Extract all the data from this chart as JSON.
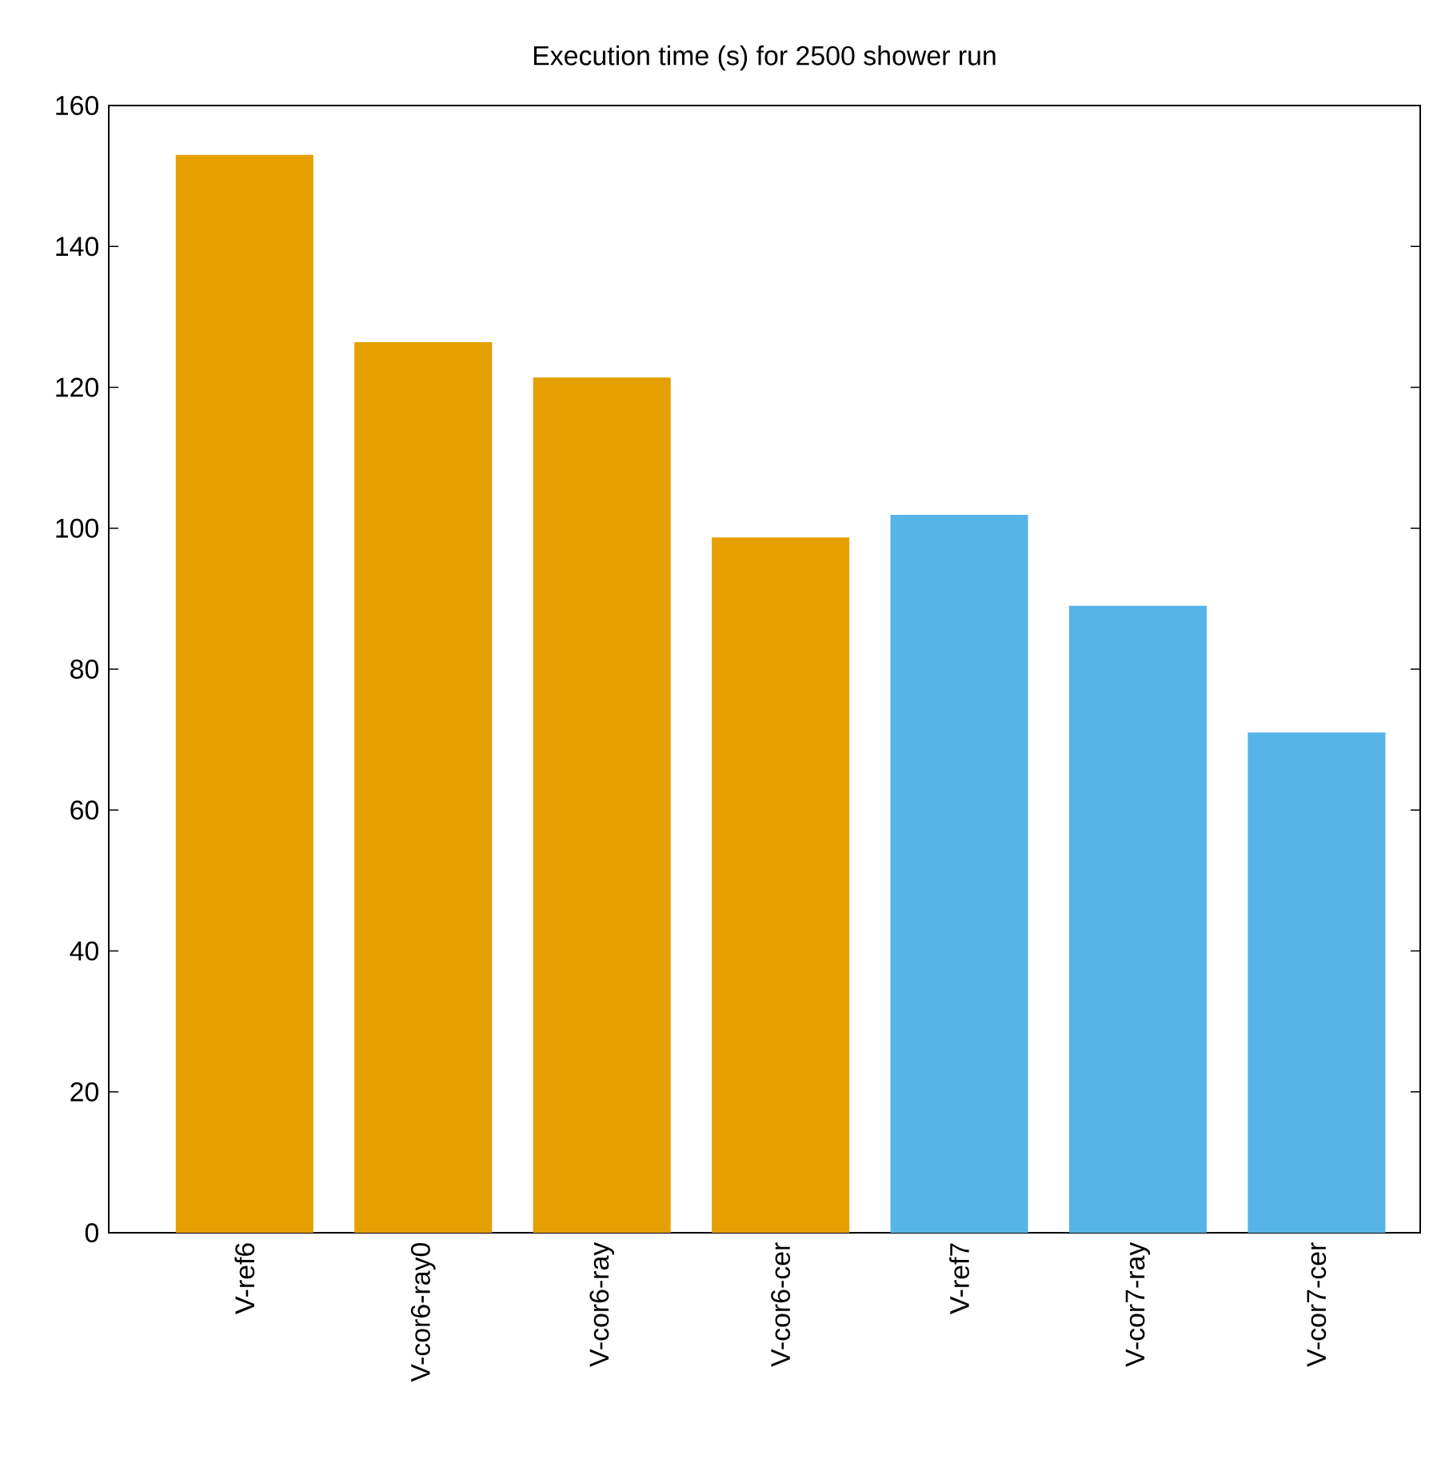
{
  "chart_data": {
    "type": "bar",
    "title": "Execution time (s) for 2500 shower run",
    "categories": [
      "V-ref6",
      "V-cor6-ray0",
      "V-cor6-ray",
      "V-cor6-cer",
      "V-ref7",
      "V-cor7-ray",
      "V-cor7-cer"
    ],
    "values": [
      153,
      126.4,
      121.4,
      98.7,
      101.9,
      89,
      71
    ],
    "colors": [
      "#e69f00",
      "#e69f00",
      "#e69f00",
      "#e69f00",
      "#56b4e9",
      "#56b4e9",
      "#56b4e9"
    ],
    "ylim": [
      0,
      160
    ],
    "yticks": [
      0,
      20,
      40,
      60,
      80,
      100,
      120,
      140,
      160
    ]
  }
}
